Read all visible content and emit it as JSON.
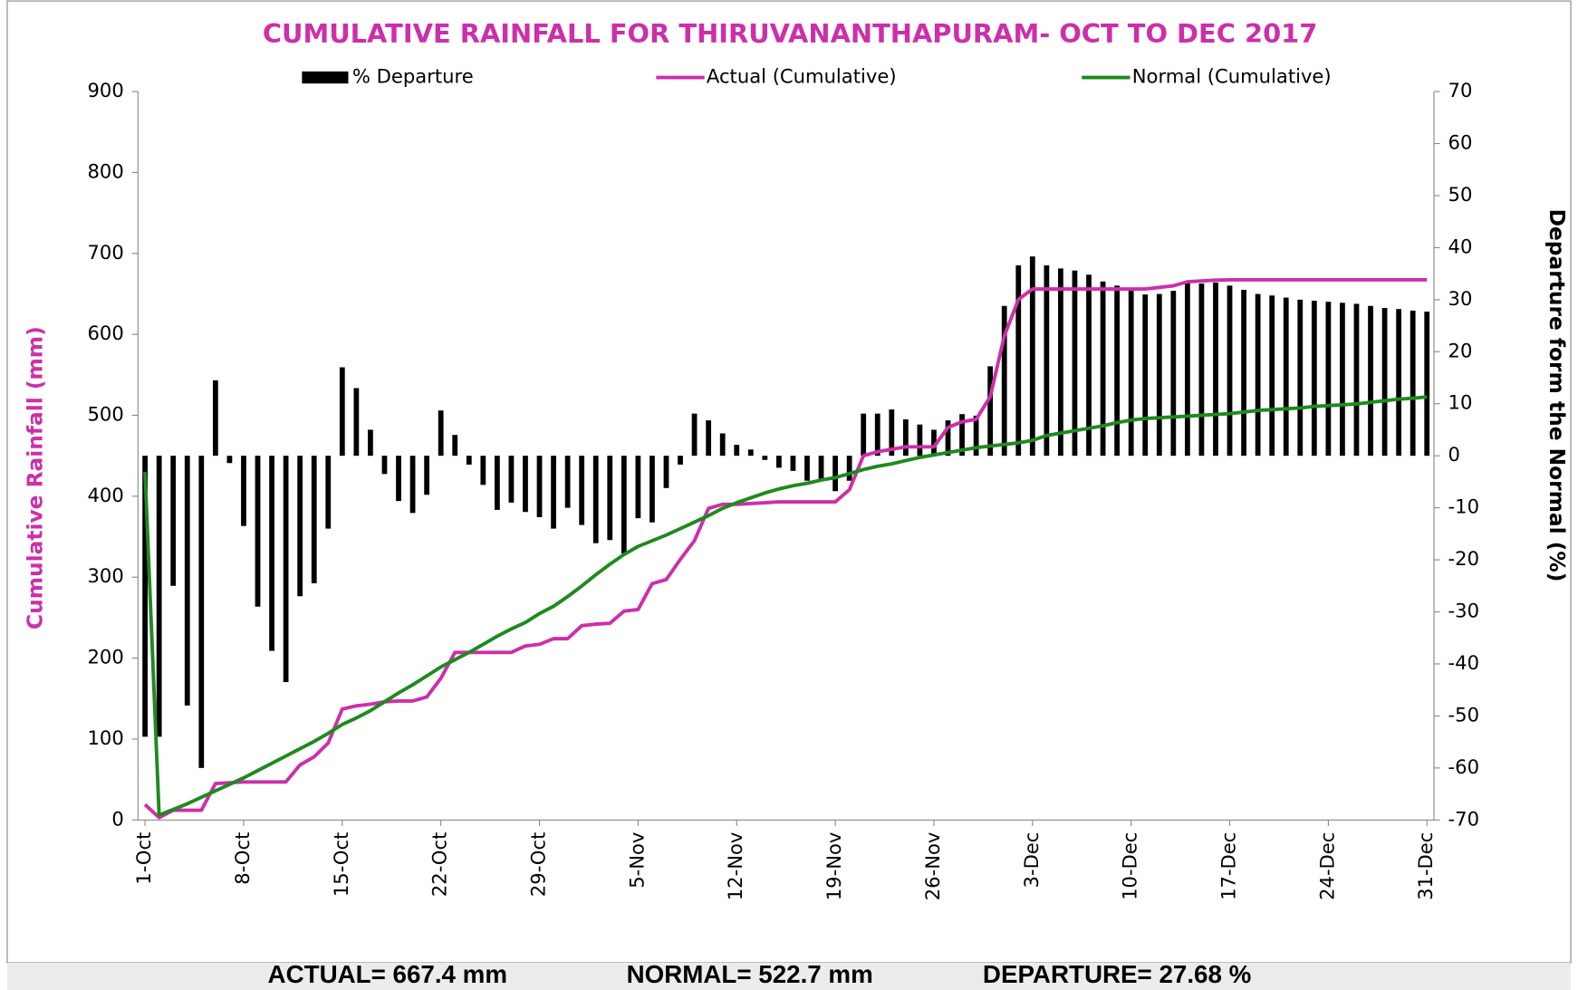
{
  "chart_data": {
    "type": "combo",
    "title": "CUMULATIVE RAINFALL FOR THIRUVANANTHAPURAM- OCT TO DEC 2017",
    "y_label": "Cumulative Rainfall (mm)",
    "y2_label": "Departure form the Normal (%)",
    "categories": [
      "1-Oct",
      null,
      null,
      null,
      null,
      null,
      null,
      "8-Oct",
      null,
      null,
      null,
      null,
      null,
      null,
      "15-Oct",
      null,
      null,
      null,
      null,
      null,
      null,
      "22-Oct",
      null,
      null,
      null,
      null,
      null,
      null,
      "29-Oct",
      null,
      null,
      null,
      null,
      null,
      null,
      "5-Nov",
      null,
      null,
      null,
      null,
      null,
      null,
      "12-Nov",
      null,
      null,
      null,
      null,
      null,
      null,
      "19-Nov",
      null,
      null,
      null,
      null,
      null,
      null,
      "26-Nov",
      null,
      null,
      null,
      null,
      null,
      null,
      "3-Dec",
      null,
      null,
      null,
      null,
      null,
      null,
      "10-Dec",
      null,
      null,
      null,
      null,
      null,
      null,
      "17-Dec",
      null,
      null,
      null,
      null,
      null,
      null,
      "24-Dec",
      null,
      null,
      null,
      null,
      null,
      null,
      "31-Dec"
    ],
    "series": [
      {
        "name": "% Departure",
        "type": "bar",
        "axis": "y2",
        "color": "#000000",
        "values": [
          -54,
          -54,
          -25,
          -48,
          -60,
          14.5,
          -1.4,
          -13.5,
          -29,
          -37.5,
          -43.5,
          -27,
          -24.5,
          -14,
          17,
          13,
          5,
          -3.5,
          -8.7,
          -11,
          -7.5,
          8.7,
          4,
          -1.7,
          -5.6,
          -10.4,
          -9,
          -10.8,
          -11.8,
          -14,
          -10,
          -13.3,
          -16.8,
          -16.2,
          -18.8,
          -12,
          -12.8,
          -6.2,
          -1.7,
          8.1,
          6.8,
          4.3,
          2.1,
          1.2,
          -0.8,
          -2.3,
          -2.9,
          -4.8,
          -4.8,
          -6.8,
          -4.8,
          8.1,
          8.1,
          8.9,
          7,
          6,
          5,
          6.8,
          8,
          7.7,
          17.2,
          28.8,
          36.6,
          38.3,
          36.6,
          36,
          35.6,
          34.8,
          33.5,
          32.7,
          31.7,
          31,
          31.1,
          31.7,
          33.3,
          33.1,
          33.3,
          32.7,
          31.9,
          31.1,
          30.8,
          30.4,
          30,
          29.8,
          29.6,
          29.4,
          29.2,
          28.8,
          28.4,
          28.2,
          27.9,
          27.7
        ]
      },
      {
        "name": "Actual (Cumulative)",
        "type": "line",
        "color": "#cc2faa",
        "values": [
          19,
          3,
          12,
          12,
          12,
          45,
          46,
          47,
          47,
          47,
          47,
          68,
          78,
          95,
          137,
          141,
          143,
          146,
          147,
          147,
          152,
          175,
          207,
          207,
          207,
          207,
          207,
          215,
          217,
          224,
          224,
          240,
          242,
          243,
          258,
          260,
          292,
          297,
          322,
          345,
          385,
          390,
          390,
          391,
          392,
          393,
          393,
          393,
          393,
          393,
          408,
          450,
          455,
          458,
          461,
          461,
          461,
          485,
          492,
          495,
          523,
          598,
          643,
          656,
          656,
          656,
          656,
          656,
          656,
          656,
          656,
          656,
          658,
          660,
          665,
          666,
          667,
          667.4,
          667.4,
          667.4,
          667.4,
          667.4,
          667.4,
          667.4,
          667.4,
          667.4,
          667.4,
          667.4,
          667.4,
          667.4,
          667.4,
          667.4
        ]
      },
      {
        "name": "Normal (Cumulative)",
        "type": "line",
        "color": "#1e8a1e",
        "values": [
          430,
          6,
          13,
          20,
          28,
          36,
          44,
          52,
          61,
          70,
          79,
          88,
          97,
          107,
          118,
          126,
          135,
          146,
          157,
          167,
          178,
          189,
          198,
          207,
          217,
          227,
          236,
          244,
          255,
          264,
          276,
          289,
          303,
          316,
          328,
          338,
          345,
          352,
          360,
          368,
          376,
          385,
          392,
          398,
          404,
          409,
          413,
          416,
          420,
          423,
          428,
          433,
          437,
          440,
          444,
          448,
          451,
          454,
          457,
          460,
          462,
          464,
          466,
          469,
          475,
          478,
          481,
          484,
          487,
          491,
          494,
          496,
          497,
          498,
          499,
          500,
          501,
          502,
          504,
          506,
          507,
          508,
          509,
          511,
          512,
          513,
          514,
          516,
          518,
          520,
          521,
          522.7
        ]
      }
    ],
    "ylim": [
      0,
      900
    ],
    "yticks": [
      0,
      100,
      200,
      300,
      400,
      500,
      600,
      700,
      800,
      900
    ],
    "y2lim": [
      -70,
      70
    ],
    "y2ticks": [
      -70,
      -60,
      -50,
      -40,
      -30,
      -20,
      -10,
      0,
      10,
      20,
      30,
      40,
      50,
      60,
      70
    ],
    "grid": false,
    "legend": "top",
    "annotations": [
      "ACTUAL= 667.4 mm",
      "NORMAL= 522.7 mm",
      "DEPARTURE= 27.68 %"
    ]
  }
}
